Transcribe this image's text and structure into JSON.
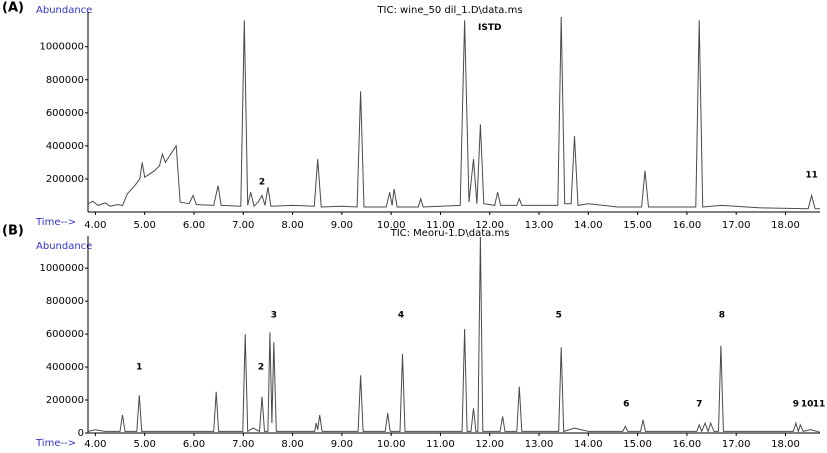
{
  "chart_data": [
    {
      "type": "line",
      "panel_label": "(A)",
      "title": "TIC: wine_50 dil_1.D\\data.ms",
      "y_label": "Abundance",
      "x_label": "Time-->",
      "xlim": [
        3.85,
        18.7
      ],
      "ylim": [
        0,
        1210000
      ],
      "xticks": [
        {
          "value": 4,
          "label": "4.00"
        },
        {
          "value": 5,
          "label": "5.00"
        },
        {
          "value": 6,
          "label": "6.00"
        },
        {
          "value": 7,
          "label": "7.00"
        },
        {
          "value": 8,
          "label": "8.00"
        },
        {
          "value": 9,
          "label": "9.00"
        },
        {
          "value": 10,
          "label": "10.00"
        },
        {
          "value": 11,
          "label": "11.00"
        },
        {
          "value": 12,
          "label": "12.00"
        },
        {
          "value": 13,
          "label": "13.00"
        },
        {
          "value": 14,
          "label": "14.00"
        },
        {
          "value": 15,
          "label": "15.00"
        },
        {
          "value": 16,
          "label": "16.00"
        },
        {
          "value": 17,
          "label": "17.00"
        },
        {
          "value": 18,
          "label": "18.00"
        }
      ],
      "yticks": [
        200000,
        400000,
        600000,
        800000,
        1000000
      ],
      "x": [
        3.85,
        3.95,
        4.05,
        4.2,
        4.3,
        4.45,
        4.55,
        4.65,
        4.8,
        4.9,
        4.95,
        5.0,
        5.2,
        5.3,
        5.36,
        5.42,
        5.55,
        5.64,
        5.72,
        5.9,
        5.98,
        6.05,
        6.4,
        6.49,
        6.55,
        6.95,
        7.02,
        7.09,
        7.15,
        7.22,
        7.3,
        7.38,
        7.44,
        7.5,
        7.56,
        8.0,
        8.44,
        8.51,
        8.58,
        9.0,
        9.31,
        9.38,
        9.45,
        9.9,
        9.97,
        10.02,
        10.06,
        10.12,
        10.55,
        10.6,
        10.65,
        11.4,
        11.49,
        11.58,
        11.67,
        11.74,
        11.81,
        11.88,
        12.1,
        12.16,
        12.22,
        12.55,
        12.6,
        12.65,
        13.38,
        13.45,
        13.52,
        13.65,
        13.72,
        13.79,
        14.0,
        14.6,
        15.08,
        15.15,
        15.22,
        16.18,
        16.25,
        16.32,
        16.7,
        17.5,
        18.46,
        18.53,
        18.6,
        18.7
      ],
      "series": [
        {
          "color": "#4a4a4a",
          "values": [
            50000,
            65000,
            40000,
            55000,
            35000,
            45000,
            40000,
            110000,
            160000,
            200000,
            300000,
            210000,
            250000,
            280000,
            350000,
            300000,
            360000,
            400000,
            60000,
            50000,
            100000,
            45000,
            40000,
            160000,
            40000,
            35000,
            1160000,
            40000,
            120000,
            35000,
            60000,
            100000,
            40000,
            150000,
            35000,
            40000,
            35000,
            320000,
            30000,
            35000,
            30000,
            730000,
            30000,
            30000,
            120000,
            40000,
            140000,
            30000,
            30000,
            80000,
            30000,
            40000,
            1160000,
            60000,
            320000,
            50000,
            530000,
            50000,
            40000,
            120000,
            40000,
            40000,
            80000,
            40000,
            40000,
            1180000,
            50000,
            50000,
            460000,
            40000,
            50000,
            30000,
            30000,
            250000,
            30000,
            30000,
            1160000,
            30000,
            40000,
            25000,
            20000,
            100000,
            20000,
            20000
          ]
        }
      ],
      "annotations": [
        {
          "text": "2",
          "x": 7.38,
          "y": 180000
        },
        {
          "text": "ISTD",
          "x": 12.0,
          "y": 1115000
        },
        {
          "text": "11",
          "x": 18.53,
          "y": 225000
        }
      ]
    },
    {
      "type": "line",
      "panel_label": "(B)",
      "title": "TIC: Meoru-1.D\\data.ms",
      "y_label": "Abundance",
      "x_label": "Time-->",
      "xlim": [
        3.85,
        18.7
      ],
      "ylim": [
        0,
        1195000
      ],
      "xticks": [
        {
          "value": 4,
          "label": "4.00"
        },
        {
          "value": 5,
          "label": "5.00"
        },
        {
          "value": 6,
          "label": "6.00"
        },
        {
          "value": 7,
          "label": "7.00"
        },
        {
          "value": 8,
          "label": "8.00"
        },
        {
          "value": 9,
          "label": "9.00"
        },
        {
          "value": 10,
          "label": "10.00"
        },
        {
          "value": 11,
          "label": "11.00"
        },
        {
          "value": 12,
          "label": "12.00"
        },
        {
          "value": 13,
          "label": "13.00"
        },
        {
          "value": 14,
          "label": "14.00"
        },
        {
          "value": 15,
          "label": "15.00"
        },
        {
          "value": 16,
          "label": "16.00"
        },
        {
          "value": 17,
          "label": "17.00"
        },
        {
          "value": 18,
          "label": "18.00"
        }
      ],
      "yticks": [
        0,
        200000,
        400000,
        600000,
        800000,
        1000000
      ],
      "x": [
        3.85,
        4.0,
        4.2,
        4.5,
        4.55,
        4.6,
        4.84,
        4.89,
        4.94,
        5.5,
        6.4,
        6.45,
        6.5,
        6.99,
        7.04,
        7.09,
        7.2,
        7.33,
        7.38,
        7.43,
        7.5,
        7.54,
        7.58,
        7.62,
        7.67,
        8.0,
        8.45,
        8.48,
        8.51,
        8.55,
        8.6,
        9.33,
        9.38,
        9.43,
        9.88,
        9.93,
        9.98,
        10.18,
        10.23,
        10.28,
        11.44,
        11.49,
        11.54,
        11.62,
        11.67,
        11.72,
        11.76,
        11.81,
        11.86,
        12.21,
        12.26,
        12.31,
        12.55,
        12.6,
        12.65,
        13.4,
        13.45,
        13.5,
        13.72,
        14.0,
        14.7,
        14.75,
        14.8,
        15.06,
        15.11,
        15.16,
        16.2,
        16.25,
        16.3,
        16.37,
        16.43,
        16.48,
        16.55,
        16.64,
        16.69,
        16.74,
        17.5,
        18.16,
        18.21,
        18.26,
        18.3,
        18.36,
        18.51,
        18.7
      ],
      "series": [
        {
          "color": "#4a4a4a",
          "values": [
            10000,
            20000,
            10000,
            10000,
            110000,
            10000,
            10000,
            230000,
            10000,
            10000,
            10000,
            250000,
            10000,
            10000,
            600000,
            10000,
            30000,
            10000,
            220000,
            10000,
            10000,
            610000,
            60000,
            550000,
            10000,
            10000,
            10000,
            60000,
            20000,
            110000,
            10000,
            10000,
            350000,
            10000,
            10000,
            120000,
            10000,
            10000,
            480000,
            10000,
            10000,
            630000,
            10000,
            10000,
            150000,
            10000,
            10000,
            1190000,
            10000,
            10000,
            100000,
            10000,
            10000,
            280000,
            10000,
            10000,
            520000,
            10000,
            30000,
            10000,
            10000,
            40000,
            10000,
            10000,
            80000,
            10000,
            10000,
            50000,
            10000,
            60000,
            10000,
            60000,
            10000,
            10000,
            530000,
            10000,
            10000,
            10000,
            60000,
            10000,
            50000,
            10000,
            20000,
            5000
          ]
        }
      ],
      "annotations": [
        {
          "text": "1",
          "x": 4.89,
          "y": 400000
        },
        {
          "text": "2",
          "x": 7.36,
          "y": 400000
        },
        {
          "text": "3",
          "x": 7.62,
          "y": 715000
        },
        {
          "text": "4",
          "x": 10.2,
          "y": 715000
        },
        {
          "text": "5",
          "x": 13.4,
          "y": 715000
        },
        {
          "text": "6",
          "x": 14.77,
          "y": 175000
        },
        {
          "text": "7",
          "x": 16.25,
          "y": 175000
        },
        {
          "text": "8",
          "x": 16.71,
          "y": 715000
        },
        {
          "text": "9",
          "x": 18.21,
          "y": 175000
        },
        {
          "text": "10",
          "x": 18.44,
          "y": 175000
        },
        {
          "text": "11",
          "x": 18.68,
          "y": 175000
        }
      ]
    }
  ]
}
